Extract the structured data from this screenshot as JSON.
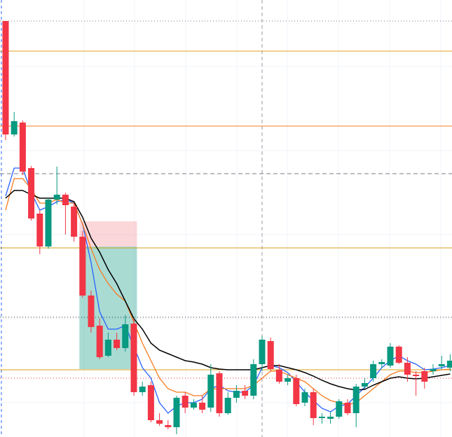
{
  "chart_data": {
    "type": "candlestick",
    "ylim": [
      0,
      624
    ],
    "up_color": "#089981",
    "down_color": "#f23645",
    "open": [
      594,
      432,
      449,
      384,
      319,
      272,
      339,
      346,
      329,
      286,
      202,
      159,
      116,
      139,
      127,
      162,
      64,
      74,
      24,
      17,
      14,
      59,
      42,
      49,
      42,
      91,
      34,
      56,
      66,
      59,
      104,
      137,
      96,
      79,
      84,
      49,
      64,
      27,
      26,
      29,
      49,
      34,
      72,
      84,
      104,
      102,
      129,
      106,
      89,
      94,
      94,
      101,
      99
    ],
    "high": [
      594,
      464,
      452,
      387,
      324,
      341,
      386,
      349,
      334,
      294,
      209,
      169,
      149,
      149,
      174,
      169,
      79,
      79,
      34,
      24,
      59,
      64,
      54,
      59,
      104,
      94,
      64,
      74,
      74,
      111,
      144,
      142,
      104,
      89,
      89,
      69,
      69,
      34,
      36,
      54,
      54,
      76,
      84,
      109,
      111,
      134,
      131,
      114,
      94,
      99,
      104,
      116,
      118
    ],
    "low": [
      424,
      429,
      374,
      309,
      261,
      269,
      332,
      289,
      279,
      199,
      149,
      111,
      114,
      124,
      122,
      59,
      59,
      21,
      16,
      11,
      4,
      34,
      39,
      34,
      36,
      29,
      32,
      49,
      54,
      54,
      94,
      94,
      76,
      74,
      44,
      44,
      17,
      19,
      19,
      26,
      31,
      14,
      69,
      79,
      99,
      99,
      104,
      79,
      59,
      69,
      89,
      96,
      94
    ],
    "close": [
      432,
      451,
      379,
      312,
      272,
      339,
      346,
      331,
      286,
      202,
      157,
      114,
      139,
      127,
      161,
      64,
      72,
      24,
      19,
      14,
      56,
      42,
      49,
      39,
      89,
      34,
      56,
      66,
      59,
      104,
      139,
      97,
      79,
      84,
      47,
      64,
      27,
      29,
      29,
      51,
      34,
      72,
      77,
      104,
      107,
      129,
      106,
      89,
      87,
      79,
      97,
      104,
      109
    ],
    "series": [
      {
        "color": "#2962ff",
        "values": [
          344,
          384,
          384,
          349,
          324,
          329,
          336,
          339,
          334,
          304,
          249,
          179,
          154,
          154,
          159,
          129,
          99,
          84,
          49,
          34,
          44,
          49,
          49,
          54,
          69,
          74,
          66,
          64,
          64,
          74,
          99,
          102,
          99,
          92,
          79,
          64,
          52,
          41,
          36,
          44,
          47,
          59,
          71,
          84,
          99,
          109,
          116,
          109,
          104,
          96,
          97,
          99,
          102
        ]
      },
      {
        "color": "#f57c1f",
        "values": [
          324,
          369,
          369,
          354,
          334,
          334,
          339,
          334,
          334,
          304,
          269,
          239,
          219,
          204,
          194,
          164,
          134,
          109,
          84,
          69,
          64,
          64,
          59,
          59,
          69,
          69,
          69,
          69,
          69,
          74,
          84,
          94,
          94,
          89,
          84,
          79,
          69,
          59,
          52,
          49,
          46,
          49,
          59,
          69,
          79,
          89,
          94,
          94,
          92,
          92,
          94,
          96,
          97
        ]
      },
      {
        "color": "#000000",
        "values": [
          341,
          352,
          352,
          346,
          341,
          341,
          341,
          341,
          336,
          314,
          284,
          264,
          239,
          219,
          194,
          169,
          154,
          134,
          124,
          119,
          114,
          109,
          107,
          104,
          99,
          97,
          96,
          96,
          96,
          96,
          99,
          102,
          102,
          99,
          96,
          92,
          87,
          81,
          76,
          72,
          69,
          67,
          68,
          74,
          79,
          84,
          86,
          84,
          83,
          84,
          86,
          88,
          90
        ]
      }
    ],
    "levels": [
      {
        "value": 594,
        "color": "#787b86",
        "style": "dotted"
      },
      {
        "value": 551,
        "color": "#e0a020",
        "style": "solid"
      },
      {
        "value": 444,
        "color": "#f57c1f",
        "style": "solid"
      },
      {
        "value": 376,
        "color": "#787b86",
        "style": "dashed"
      },
      {
        "value": 270,
        "color": "#d4a017",
        "style": "solid"
      },
      {
        "value": 171,
        "color": "#333333",
        "style": "dotted"
      },
      {
        "value": 96,
        "color": "#d4a017",
        "style": "solid"
      },
      {
        "value": 84,
        "color": "#f23645",
        "style": "dotted"
      }
    ],
    "position": {
      "start_index": 9,
      "end_index": 15,
      "stop": 308,
      "entry": 272,
      "target": 97
    }
  }
}
